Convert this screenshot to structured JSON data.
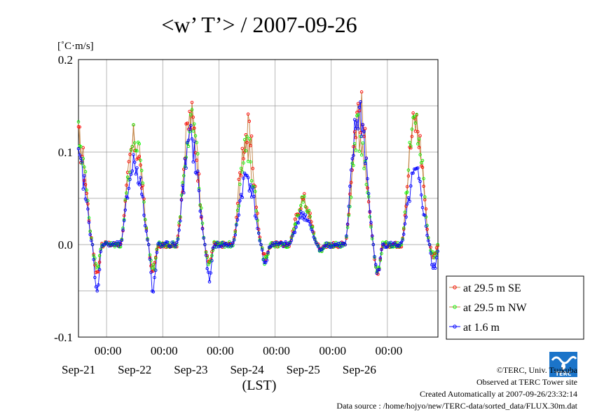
{
  "chart_data": {
    "type": "line",
    "title": "<w’ T’> / 2007-09-26",
    "unit_label": "[˚C·m/s]",
    "xlabel": "(LST)",
    "ylim": [
      -0.1,
      0.2
    ],
    "y_ticks": [
      -0.1,
      0.0,
      0.1,
      0.2
    ],
    "y_tick_labels": [
      "-0.1",
      "0.0",
      "0.1",
      "0.2"
    ],
    "x_range_days": [
      20.5,
      26.9
    ],
    "x_ticks": [
      {
        "day": 21,
        "time": "00:00",
        "date": "Sep-21"
      },
      {
        "day": 22,
        "time": "00:00",
        "date": "Sep-22"
      },
      {
        "day": 23,
        "time": "00:00",
        "date": "Sep-23"
      },
      {
        "day": 24,
        "time": "00:00",
        "date": "Sep-24"
      },
      {
        "day": 25,
        "time": "00:00",
        "date": "Sep-25"
      },
      {
        "day": 26,
        "time": "00:00",
        "date": "Sep-26"
      }
    ],
    "grid": true,
    "legend_placement": "right, below plot",
    "series": [
      {
        "name": "at 29.5 m SE",
        "color": "#ff0000",
        "line_color": "#c08040"
      },
      {
        "name": "at 29.5 m NW",
        "color": "#00ff00",
        "line_color": "#c08040"
      },
      {
        "name": "at 1.6 m",
        "color": "#0000ff",
        "line_color": "#0000ff"
      }
    ],
    "daily_profile": [
      {
        "day": 21,
        "peaks": [
          0.12,
          0.124,
          0.096
        ],
        "night": [
          -0.03,
          -0.028,
          -0.047
        ]
      },
      {
        "day": 22,
        "peaks": [
          0.147,
          0.146,
          0.12
        ],
        "night": [
          -0.018,
          -0.02,
          -0.035
        ]
      },
      {
        "day": 23,
        "peaks": [
          0.131,
          0.11,
          0.08
        ],
        "night": [
          -0.014,
          -0.018,
          -0.02
        ]
      },
      {
        "day": 24,
        "peaks": [
          0.052,
          0.048,
          0.035
        ],
        "night": [
          -0.005,
          -0.007,
          -0.005
        ]
      },
      {
        "day": 25,
        "peaks": [
          0.16,
          0.133,
          0.154
        ],
        "night": [
          -0.032,
          -0.034,
          -0.03
        ]
      },
      {
        "day": 26,
        "peaks": [
          0.143,
          0.14,
          0.08
        ],
        "night": [
          -0.012,
          -0.012,
          -0.026
        ]
      }
    ]
  },
  "footer": {
    "copyright": "©TERC, Univ. Tsukuba",
    "observed": "Observed at TERC Tower site",
    "created": "Created Automatically at 2007-09-26/23:32:14",
    "source": "Data source : /home/hojyo/new/TERC-data/sorted_data/FLUX.30m.dat"
  },
  "logo_text": "TERC"
}
